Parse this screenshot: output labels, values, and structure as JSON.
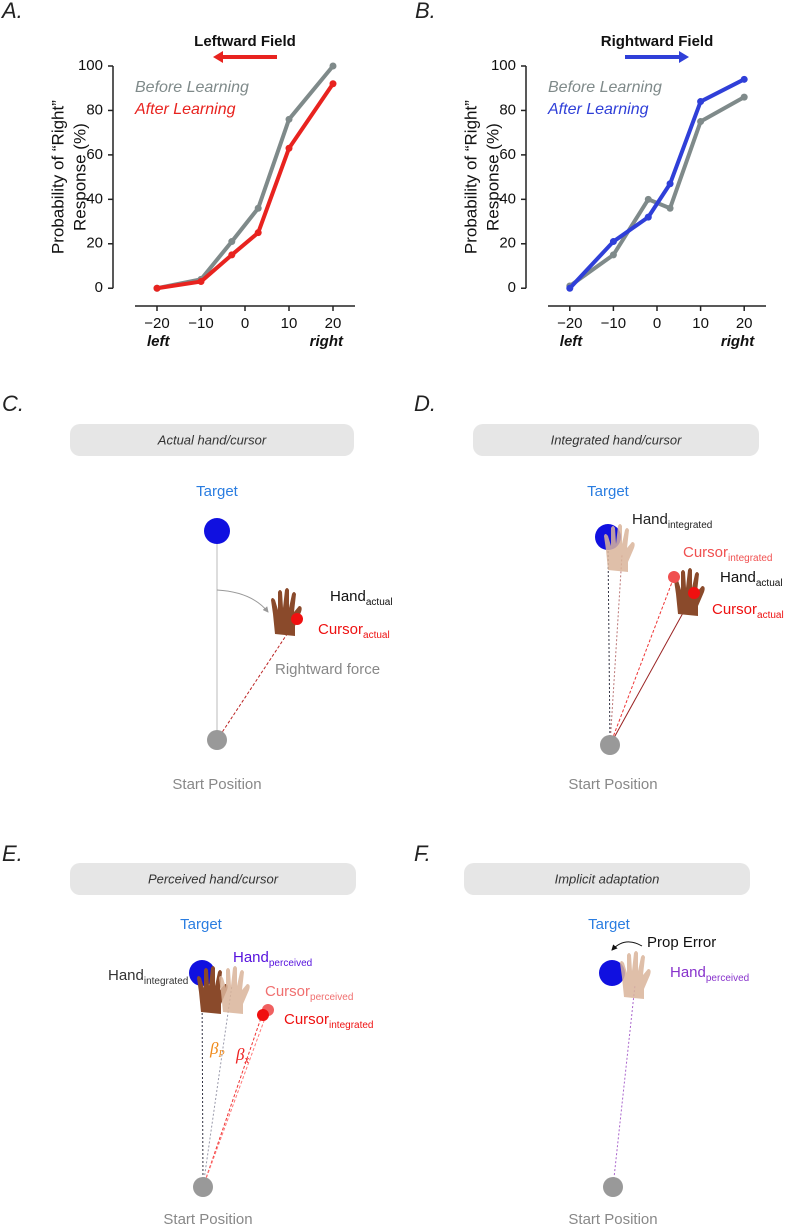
{
  "chart_data": [
    {
      "type": "line",
      "panel": "A.",
      "title": "Leftward Field",
      "ylabel": [
        "Probability of “Right”",
        "Response (%)"
      ],
      "x_end_labels": [
        "left",
        "right"
      ],
      "x": [
        -20,
        -10,
        -3,
        3,
        10,
        20
      ],
      "series": [
        {
          "name": "Before Learning",
          "color": "#7f8a8a",
          "values": [
            0,
            4,
            21,
            36,
            76,
            100
          ]
        },
        {
          "name": "After Learning",
          "color": "#e8231f",
          "values": [
            0,
            3,
            15,
            25,
            63,
            92
          ]
        }
      ],
      "xlim": [
        -25,
        25
      ],
      "xticks": [
        {
          "value": -20,
          "label": "−20"
        },
        {
          "value": -10,
          "label": "−10"
        },
        0,
        10,
        20
      ],
      "ylim": [
        -8,
        100
      ],
      "yticks": [
        0,
        20,
        40,
        60,
        80,
        100
      ],
      "legend": "upper left"
    },
    {
      "type": "line",
      "panel": "B.",
      "title": "Rightward Field",
      "ylabel": [
        "Probability of “Right”",
        "Response (%)"
      ],
      "x_end_labels": [
        "left",
        "right"
      ],
      "x": [
        -20,
        -10,
        -2,
        3,
        10,
        20
      ],
      "series": [
        {
          "name": "Before Learning",
          "color": "#7f8a8a",
          "values": [
            1,
            15,
            40,
            36,
            75,
            86
          ]
        },
        {
          "name": "After Learning",
          "color": "#2f3fd8",
          "values": [
            0,
            21,
            32,
            47,
            84,
            94
          ]
        }
      ],
      "xlim": [
        -25,
        25
      ],
      "xticks": [
        {
          "value": -20,
          "label": "−20"
        },
        {
          "value": -10,
          "label": "−10"
        },
        0,
        10,
        20
      ],
      "ylim": [
        -8,
        100
      ],
      "yticks": [
        0,
        20,
        40,
        60,
        80,
        100
      ],
      "legend": "upper left"
    }
  ],
  "panels": {
    "C": {
      "label": "C.",
      "box": "Actual hand/cursor",
      "target": "Target",
      "start": "Start Position",
      "hand_actual": {
        "main": "Hand",
        "sub": "actual"
      },
      "cursor_actual": {
        "main": "Cursor",
        "sub": "actual"
      },
      "force": "Rightward force"
    },
    "D": {
      "label": "D.",
      "box": "Integrated hand/cursor",
      "target": "Target",
      "start": "Start Position",
      "hand_integrated": {
        "main": "Hand",
        "sub": "integrated"
      },
      "cursor_integrated": {
        "main": "Cursor",
        "sub": "integrated"
      },
      "hand_actual": {
        "main": "Hand",
        "sub": "actual"
      },
      "cursor_actual": {
        "main": "Cursor",
        "sub": "actual"
      }
    },
    "E": {
      "label": "E.",
      "box": "Perceived hand/cursor",
      "target": "Target",
      "start": "Start Position",
      "hand_perceived": {
        "main": "Hand",
        "sub": "perceived"
      },
      "hand_integrated": {
        "main": "Hand",
        "sub": "integrated"
      },
      "cursor_perceived": {
        "main": "Cursor",
        "sub": "perceived"
      },
      "cursor_integrated": {
        "main": "Cursor",
        "sub": "integrated"
      },
      "beta_p": {
        "main": "β",
        "sub": "P"
      },
      "beta_x": {
        "main": "β",
        "sub": "x"
      }
    },
    "F": {
      "label": "F.",
      "box": "Implicit adaptation",
      "target": "Target",
      "start": "Start Position",
      "prop_error": "Prop Error",
      "hand_perceived": {
        "main": "Hand",
        "sub": "perceived"
      }
    }
  }
}
